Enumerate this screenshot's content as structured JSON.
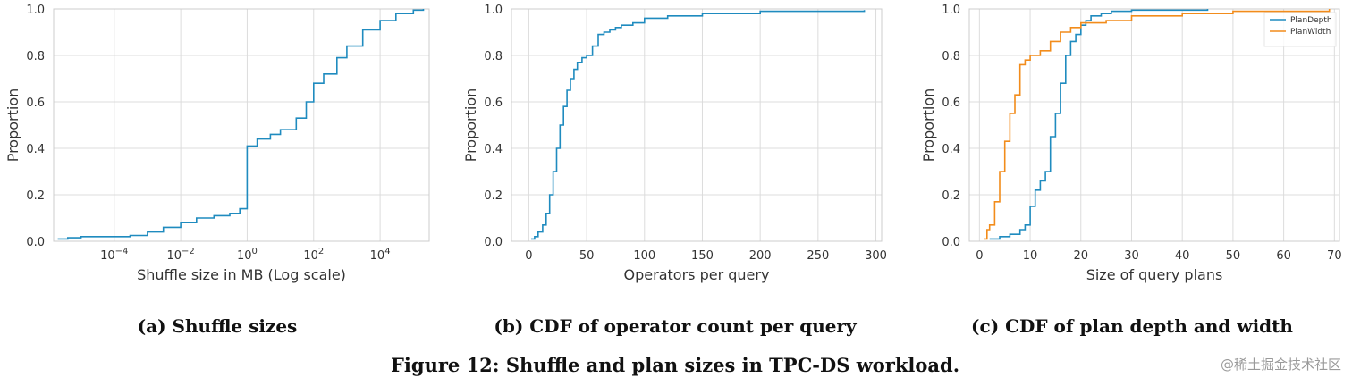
{
  "colors": {
    "blue": "#1f8bbf",
    "orange": "#f28c1b",
    "grid": "#dcdcdc",
    "frame": "#cccccc"
  },
  "figure_caption": "Figure 12: Shuffle and plan sizes in TPC-DS workload.",
  "watermark": "@稀土掘金技术社区",
  "chart_data": [
    {
      "type": "line",
      "caption": "(a) Shuffle sizes",
      "xlabel": "Shuffle size in MB (Log scale)",
      "ylabel": "Proportion",
      "xscale": "log",
      "xlim": [
        1.5e-06,
        300000
      ],
      "ylim": [
        0,
        1
      ],
      "x_ticks": [
        "10^-4",
        "10^-2",
        "10^0",
        "10^2",
        "10^4"
      ],
      "y_ticks": [
        "0.0",
        "0.2",
        "0.4",
        "0.6",
        "0.8",
        "1.0"
      ],
      "grid": true,
      "series": [
        {
          "color": "#1f8bbf",
          "x": [
            2e-06,
            4e-06,
            1e-05,
            0.0001,
            0.0003,
            0.001,
            0.003,
            0.01,
            0.03,
            0.1,
            0.3,
            0.6,
            1,
            1,
            2,
            5,
            10,
            30,
            60,
            100,
            200,
            500,
            1000,
            3000,
            10000,
            30000,
            100000,
            200000
          ],
          "y": [
            0.01,
            0.015,
            0.02,
            0.02,
            0.025,
            0.04,
            0.06,
            0.08,
            0.1,
            0.11,
            0.12,
            0.14,
            0.16,
            0.41,
            0.44,
            0.46,
            0.48,
            0.53,
            0.6,
            0.68,
            0.72,
            0.79,
            0.84,
            0.91,
            0.95,
            0.98,
            0.995,
            1.0
          ]
        }
      ]
    },
    {
      "type": "line",
      "caption": "(b) CDF of operator count per query",
      "xlabel": "Operators per query",
      "ylabel": "Proportion",
      "xlim": [
        -15,
        305
      ],
      "ylim": [
        0,
        1
      ],
      "x_ticks": [
        "0",
        "50",
        "100",
        "150",
        "200",
        "250",
        "300"
      ],
      "y_ticks": [
        "0.0",
        "0.2",
        "0.4",
        "0.6",
        "0.8",
        "1.0"
      ],
      "grid": true,
      "series": [
        {
          "color": "#1f8bbf",
          "x": [
            2,
            5,
            8,
            12,
            15,
            18,
            21,
            24,
            27,
            30,
            33,
            36,
            39,
            42,
            46,
            50,
            55,
            60,
            65,
            70,
            75,
            80,
            90,
            100,
            120,
            150,
            200,
            290
          ],
          "y": [
            0.01,
            0.02,
            0.04,
            0.07,
            0.12,
            0.2,
            0.3,
            0.4,
            0.5,
            0.58,
            0.65,
            0.7,
            0.74,
            0.77,
            0.79,
            0.8,
            0.84,
            0.89,
            0.9,
            0.91,
            0.92,
            0.93,
            0.94,
            0.96,
            0.97,
            0.98,
            0.99,
            0.995
          ]
        }
      ]
    },
    {
      "type": "line",
      "caption": "(c) CDF of plan depth and width",
      "xlabel": "Size of query plans",
      "ylabel": "Proportion",
      "xlim": [
        -2,
        71
      ],
      "ylim": [
        0,
        1
      ],
      "x_ticks": [
        "0",
        "10",
        "20",
        "30",
        "40",
        "50",
        "60",
        "70"
      ],
      "y_ticks": [
        "0.0",
        "0.2",
        "0.4",
        "0.6",
        "0.8",
        "1.0"
      ],
      "grid": true,
      "legend": "top-right",
      "series": [
        {
          "name": "PlanDepth",
          "color": "#1f8bbf",
          "x": [
            2,
            4,
            6,
            8,
            9,
            10,
            11,
            12,
            13,
            14,
            15,
            16,
            17,
            18,
            19,
            20,
            21,
            22,
            24,
            26,
            30,
            45
          ],
          "y": [
            0.01,
            0.02,
            0.03,
            0.05,
            0.07,
            0.15,
            0.22,
            0.26,
            0.3,
            0.45,
            0.55,
            0.68,
            0.8,
            0.86,
            0.89,
            0.93,
            0.95,
            0.97,
            0.98,
            0.99,
            0.995,
            1.0
          ]
        },
        {
          "name": "PlanWidth",
          "color": "#f28c1b",
          "x": [
            1,
            1.5,
            2,
            3,
            4,
            5,
            6,
            7,
            8,
            9,
            10,
            12,
            14,
            16,
            18,
            20,
            25,
            30,
            40,
            50,
            69
          ],
          "y": [
            0.01,
            0.05,
            0.07,
            0.17,
            0.3,
            0.43,
            0.55,
            0.63,
            0.76,
            0.78,
            0.8,
            0.82,
            0.86,
            0.9,
            0.92,
            0.94,
            0.95,
            0.97,
            0.98,
            0.99,
            1.0
          ]
        }
      ]
    }
  ]
}
